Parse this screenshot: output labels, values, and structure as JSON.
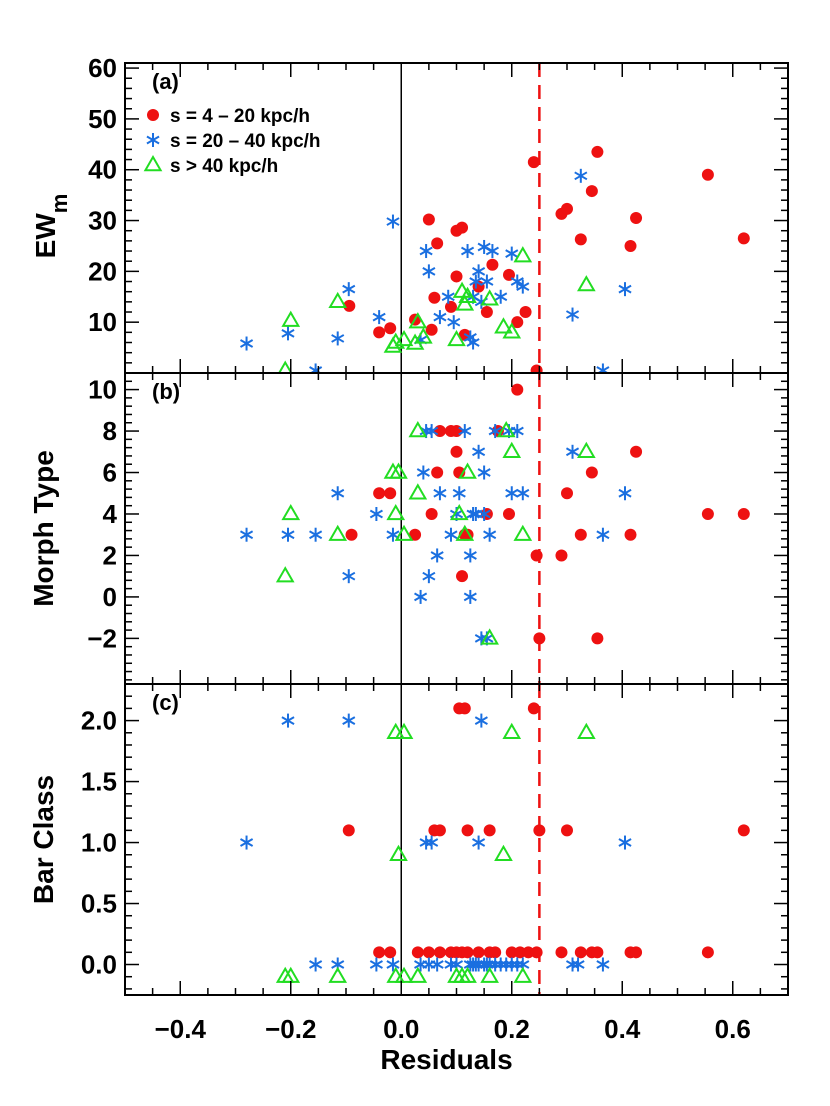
{
  "colors": {
    "s1": "#ee1111",
    "s2": "#1a6fe0",
    "s3": "#22dd22",
    "axis": "#000000",
    "ref": "#ee1111"
  },
  "chart_data": [
    {
      "type": "scatter",
      "panel_label": "(a)",
      "ylabel_main": "EW",
      "ylabel_sub": "m",
      "xlim": [
        -0.5,
        0.7
      ],
      "ylim": [
        0,
        61
      ],
      "yticks": [
        10,
        20,
        30,
        40,
        50,
        60
      ],
      "ytick_labels": [
        "10",
        "20",
        "30",
        "40",
        "50",
        "60"
      ],
      "reference_lines": {
        "solid_x": 0.0,
        "dashed_x": 0.25
      },
      "legend": [
        {
          "marker": "circle",
          "label": "s = 4 – 20 kpc/h"
        },
        {
          "marker": "asterisk",
          "label": "s = 20 – 40 kpc/h"
        },
        {
          "marker": "triangle",
          "label": "s > 40 kpc/h"
        }
      ],
      "series": [
        {
          "name": "s = 4 – 20 kpc/h",
          "marker": "circle",
          "points": [
            [
              -0.094,
              13.2
            ],
            [
              -0.02,
              8.8
            ],
            [
              -0.04,
              8.0
            ],
            [
              0.025,
              10.5
            ],
            [
              0.05,
              30.2
            ],
            [
              0.055,
              8.5
            ],
            [
              0.06,
              14.8
            ],
            [
              0.065,
              25.5
            ],
            [
              0.09,
              13.0
            ],
            [
              0.1,
              28.0
            ],
            [
              0.1,
              19.0
            ],
            [
              0.11,
              28.6
            ],
            [
              0.115,
              7.5
            ],
            [
              0.14,
              17.0
            ],
            [
              0.155,
              12.0
            ],
            [
              0.165,
              21.3
            ],
            [
              0.195,
              19.3
            ],
            [
              0.21,
              10.0
            ],
            [
              0.225,
              12.0
            ],
            [
              0.24,
              41.5
            ],
            [
              0.245,
              0.5
            ],
            [
              0.29,
              31.3
            ],
            [
              0.3,
              32.3
            ],
            [
              0.325,
              26.3
            ],
            [
              0.345,
              35.8
            ],
            [
              0.355,
              43.5
            ],
            [
              0.415,
              25.0
            ],
            [
              0.425,
              30.5
            ],
            [
              0.555,
              39.0
            ],
            [
              0.62,
              26.5
            ]
          ]
        },
        {
          "name": "s = 20 – 40 kpc/h",
          "marker": "asterisk",
          "points": [
            [
              -0.28,
              5.8
            ],
            [
              -0.205,
              7.8
            ],
            [
              -0.155,
              0.5
            ],
            [
              -0.115,
              6.8
            ],
            [
              -0.095,
              16.5
            ],
            [
              -0.04,
              11.0
            ],
            [
              -0.015,
              29.8
            ],
            [
              0.035,
              6.5
            ],
            [
              0.045,
              24.0
            ],
            [
              0.05,
              20.0
            ],
            [
              0.07,
              11.0
            ],
            [
              0.085,
              15.0
            ],
            [
              0.095,
              10.0
            ],
            [
              0.12,
              24.0
            ],
            [
              0.125,
              7.0
            ],
            [
              0.13,
              6.0
            ],
            [
              0.13,
              15.0
            ],
            [
              0.135,
              18.0
            ],
            [
              0.14,
              20.0
            ],
            [
              0.145,
              14.0
            ],
            [
              0.15,
              24.8
            ],
            [
              0.155,
              18.0
            ],
            [
              0.165,
              24.0
            ],
            [
              0.18,
              15.0
            ],
            [
              0.2,
              23.5
            ],
            [
              0.21,
              18.0
            ],
            [
              0.22,
              17.0
            ],
            [
              0.31,
              11.5
            ],
            [
              0.325,
              38.8
            ],
            [
              0.365,
              0.5
            ],
            [
              0.405,
              16.5
            ]
          ]
        },
        {
          "name": "s > 40 kpc/h",
          "marker": "triangle",
          "points": [
            [
              -0.21,
              0.5
            ],
            [
              -0.2,
              10.3
            ],
            [
              -0.115,
              14.0
            ],
            [
              -0.015,
              5.2
            ],
            [
              -0.01,
              6.0
            ],
            [
              0.005,
              6.5
            ],
            [
              0.025,
              5.8
            ],
            [
              0.03,
              10.0
            ],
            [
              0.04,
              7.0
            ],
            [
              0.1,
              6.5
            ],
            [
              0.11,
              16.0
            ],
            [
              0.115,
              13.5
            ],
            [
              0.12,
              15.0
            ],
            [
              0.16,
              14.5
            ],
            [
              0.185,
              9.0
            ],
            [
              0.2,
              8.0
            ],
            [
              0.22,
              23.0
            ],
            [
              0.335,
              17.3
            ]
          ]
        }
      ]
    },
    {
      "type": "scatter",
      "panel_label": "(b)",
      "ylabel": "Morph Type",
      "xlim": [
        -0.5,
        0.7
      ],
      "ylim": [
        -4.2,
        10.8
      ],
      "yticks": [
        -2,
        0,
        2,
        4,
        6,
        8,
        10
      ],
      "ytick_labels": [
        "−2",
        "0",
        "2",
        "4",
        "6",
        "8",
        "10"
      ],
      "reference_lines": {
        "solid_x": 0.0,
        "dashed_x": 0.25
      },
      "series": [
        {
          "name": "s = 4 – 20 kpc/h",
          "marker": "circle",
          "points": [
            [
              -0.09,
              3
            ],
            [
              -0.04,
              5
            ],
            [
              -0.02,
              5
            ],
            [
              0.025,
              3
            ],
            [
              0.055,
              4
            ],
            [
              0.065,
              6
            ],
            [
              0.07,
              8
            ],
            [
              0.09,
              8
            ],
            [
              0.1,
              8
            ],
            [
              0.1,
              7
            ],
            [
              0.105,
              6
            ],
            [
              0.11,
              1
            ],
            [
              0.115,
              3
            ],
            [
              0.12,
              3
            ],
            [
              0.155,
              4
            ],
            [
              0.175,
              8
            ],
            [
              0.195,
              4
            ],
            [
              0.21,
              10
            ],
            [
              0.245,
              2
            ],
            [
              0.25,
              -2
            ],
            [
              0.29,
              2
            ],
            [
              0.3,
              5
            ],
            [
              0.325,
              3
            ],
            [
              0.345,
              6
            ],
            [
              0.355,
              -2
            ],
            [
              0.415,
              3
            ],
            [
              0.425,
              7
            ],
            [
              0.555,
              4
            ],
            [
              0.62,
              4
            ]
          ]
        },
        {
          "name": "s = 20 – 40 kpc/h",
          "marker": "asterisk",
          "points": [
            [
              -0.28,
              3
            ],
            [
              -0.205,
              3
            ],
            [
              -0.155,
              3
            ],
            [
              -0.115,
              5
            ],
            [
              -0.095,
              1
            ],
            [
              -0.045,
              4
            ],
            [
              -0.015,
              3
            ],
            [
              0.035,
              0
            ],
            [
              0.04,
              6
            ],
            [
              0.045,
              8
            ],
            [
              0.05,
              1
            ],
            [
              0.055,
              8
            ],
            [
              0.065,
              2
            ],
            [
              0.07,
              5
            ],
            [
              0.09,
              3
            ],
            [
              0.1,
              4
            ],
            [
              0.105,
              5
            ],
            [
              0.115,
              8
            ],
            [
              0.125,
              0
            ],
            [
              0.125,
              2
            ],
            [
              0.13,
              4
            ],
            [
              0.135,
              4
            ],
            [
              0.14,
              7
            ],
            [
              0.145,
              -2
            ],
            [
              0.15,
              4
            ],
            [
              0.15,
              6
            ],
            [
              0.155,
              -2
            ],
            [
              0.16,
              3
            ],
            [
              0.17,
              8
            ],
            [
              0.195,
              8
            ],
            [
              0.2,
              5
            ],
            [
              0.21,
              8
            ],
            [
              0.22,
              5
            ],
            [
              0.31,
              7
            ],
            [
              0.365,
              3
            ],
            [
              0.405,
              5
            ]
          ]
        },
        {
          "name": "s > 40 kpc/h",
          "marker": "triangle",
          "points": [
            [
              -0.21,
              1
            ],
            [
              -0.2,
              4
            ],
            [
              -0.115,
              3
            ],
            [
              -0.015,
              6
            ],
            [
              -0.01,
              4
            ],
            [
              -0.005,
              6
            ],
            [
              0.005,
              3
            ],
            [
              0.03,
              8
            ],
            [
              0.03,
              5
            ],
            [
              0.105,
              4
            ],
            [
              0.115,
              3
            ],
            [
              0.12,
              6
            ],
            [
              0.16,
              -2
            ],
            [
              0.19,
              8
            ],
            [
              0.2,
              7
            ],
            [
              0.22,
              3
            ],
            [
              0.335,
              7
            ]
          ]
        }
      ]
    },
    {
      "type": "scatter",
      "panel_label": "(c)",
      "ylabel": "Bar Class",
      "xlabel": "Residuals",
      "xlim": [
        -0.5,
        0.7
      ],
      "ylim": [
        -0.25,
        2.3
      ],
      "yticks": [
        0.0,
        0.5,
        1.0,
        1.5,
        2.0
      ],
      "ytick_labels": [
        "0.0",
        "0.5",
        "1.0",
        "1.5",
        "2.0"
      ],
      "xticks": [
        -0.4,
        -0.2,
        0.0,
        0.2,
        0.4,
        0.6
      ],
      "xtick_labels": [
        "−0.4",
        "−0.2",
        "0.0",
        "0.2",
        "0.4",
        "0.6"
      ],
      "reference_lines": {
        "solid_x": 0.0,
        "dashed_x": 0.25
      },
      "series": [
        {
          "name": "s = 4 – 20 kpc/h",
          "marker": "circle",
          "points": [
            [
              -0.04,
              0.1
            ],
            [
              -0.02,
              0.1
            ],
            [
              0.03,
              0.1
            ],
            [
              0.05,
              0.1
            ],
            [
              0.07,
              0.1
            ],
            [
              0.09,
              0.1
            ],
            [
              0.1,
              0.1
            ],
            [
              0.11,
              0.1
            ],
            [
              0.12,
              0.1
            ],
            [
              0.14,
              0.1
            ],
            [
              0.16,
              0.1
            ],
            [
              0.17,
              0.1
            ],
            [
              0.2,
              0.1
            ],
            [
              0.215,
              0.1
            ],
            [
              0.23,
              0.1
            ],
            [
              0.245,
              0.1
            ],
            [
              0.29,
              0.1
            ],
            [
              0.325,
              0.1
            ],
            [
              0.345,
              0.1
            ],
            [
              0.355,
              0.1
            ],
            [
              0.415,
              0.1
            ],
            [
              0.425,
              0.1
            ],
            [
              0.555,
              0.1
            ],
            [
              -0.095,
              1.1
            ],
            [
              0.06,
              1.1
            ],
            [
              0.07,
              1.1
            ],
            [
              0.12,
              1.1
            ],
            [
              0.16,
              1.1
            ],
            [
              0.25,
              1.1
            ],
            [
              0.3,
              1.1
            ],
            [
              0.62,
              1.1
            ],
            [
              0.105,
              2.1
            ],
            [
              0.115,
              2.1
            ],
            [
              0.24,
              2.1
            ]
          ]
        },
        {
          "name": "s = 20 – 40 kpc/h",
          "marker": "asterisk",
          "points": [
            [
              -0.28,
              1.0
            ],
            [
              -0.205,
              2.0
            ],
            [
              -0.095,
              2.0
            ],
            [
              0.045,
              1.0
            ],
            [
              0.055,
              1.0
            ],
            [
              0.14,
              1.0
            ],
            [
              0.145,
              2.0
            ],
            [
              0.405,
              1.0
            ],
            [
              -0.155,
              0.0
            ],
            [
              -0.115,
              0.0
            ],
            [
              -0.045,
              0.0
            ],
            [
              -0.015,
              0.0
            ],
            [
              0.035,
              0.0
            ],
            [
              0.05,
              0.0
            ],
            [
              0.065,
              0.0
            ],
            [
              0.09,
              0.0
            ],
            [
              0.1,
              0.0
            ],
            [
              0.125,
              0.0
            ],
            [
              0.13,
              0.0
            ],
            [
              0.135,
              0.0
            ],
            [
              0.14,
              0.0
            ],
            [
              0.15,
              0.0
            ],
            [
              0.155,
              0.0
            ],
            [
              0.16,
              0.0
            ],
            [
              0.17,
              0.0
            ],
            [
              0.18,
              0.0
            ],
            [
              0.19,
              0.0
            ],
            [
              0.2,
              0.0
            ],
            [
              0.21,
              0.0
            ],
            [
              0.22,
              0.0
            ],
            [
              0.31,
              0.0
            ],
            [
              0.32,
              0.0
            ],
            [
              0.365,
              0.0
            ]
          ]
        },
        {
          "name": "s > 40 kpc/h",
          "marker": "triangle",
          "points": [
            [
              -0.21,
              -0.1
            ],
            [
              -0.2,
              -0.1
            ],
            [
              -0.115,
              -0.1
            ],
            [
              -0.01,
              -0.1
            ],
            [
              0.005,
              -0.1
            ],
            [
              0.03,
              -0.1
            ],
            [
              0.1,
              -0.1
            ],
            [
              0.11,
              -0.1
            ],
            [
              0.12,
              -0.1
            ],
            [
              0.16,
              -0.1
            ],
            [
              0.22,
              -0.1
            ],
            [
              -0.01,
              1.9
            ],
            [
              0.005,
              1.9
            ],
            [
              -0.005,
              0.9
            ],
            [
              0.185,
              0.9
            ],
            [
              0.2,
              1.9
            ],
            [
              0.335,
              1.9
            ]
          ]
        }
      ]
    }
  ]
}
